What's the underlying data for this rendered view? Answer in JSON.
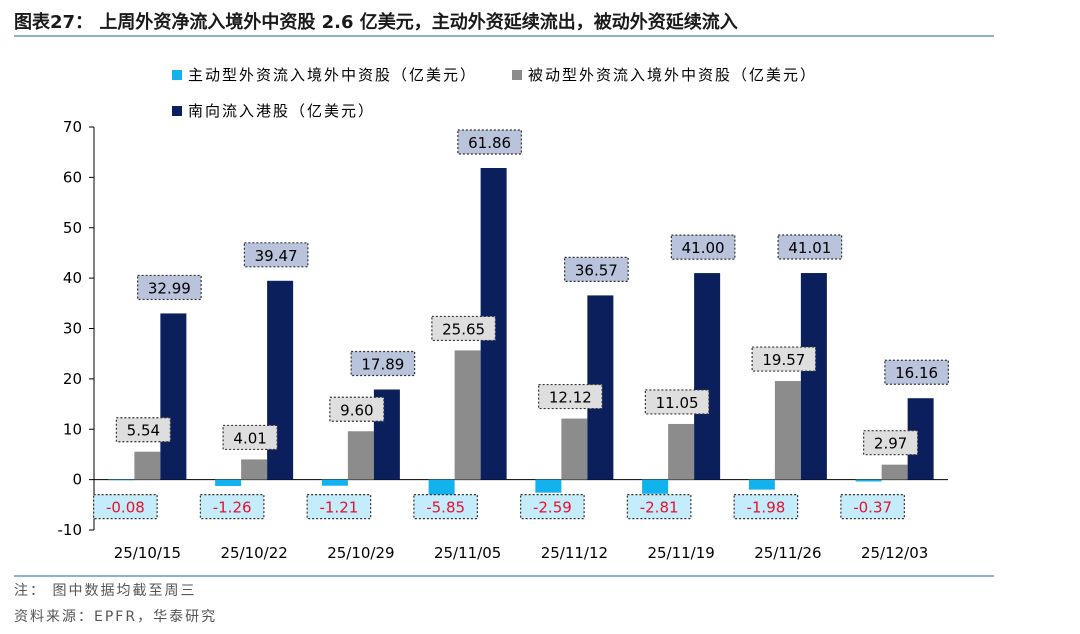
{
  "header": {
    "title": "图表27：  上周外资净流入境外中资股 2.6 亿美元，主动外资延续流出，被动外资延续流入"
  },
  "footer": {
    "note": "注：  图中数据均截至周三",
    "source": "资料来源：EPFR，华泰研究"
  },
  "chart_data": {
    "type": "bar",
    "categories": [
      "25/10/15",
      "25/10/22",
      "25/10/29",
      "25/11/05",
      "25/11/12",
      "25/11/19",
      "25/11/26",
      "25/12/03"
    ],
    "series": [
      {
        "name": "主动型外资流入境外中资股（亿美元）",
        "color": "#12b2ee",
        "label_bg": "#c5ecfb",
        "label_color": "#e8112d",
        "values": [
          -0.08,
          -1.26,
          -1.21,
          -5.85,
          -2.59,
          -2.81,
          -1.98,
          -0.37
        ],
        "labels": [
          "-0.08",
          "-1.26",
          "-1.21",
          "-5.85",
          "-2.59",
          "-2.81",
          "-1.98",
          "-0.37"
        ]
      },
      {
        "name": "被动型外资流入境外中资股（亿美元）",
        "color": "#8c8c8c",
        "label_bg": "#dedede",
        "label_color": "#000000",
        "values": [
          5.54,
          4.01,
          9.6,
          25.65,
          12.12,
          11.05,
          19.57,
          2.97
        ],
        "labels": [
          "5.54",
          "4.01",
          "9.60",
          "25.65",
          "12.12",
          "11.05",
          "19.57",
          "2.97"
        ]
      },
      {
        "name": "南向流入港股（亿美元）",
        "color": "#0b1f5c",
        "label_bg": "#b9c3dc",
        "label_color": "#000000",
        "values": [
          32.99,
          39.47,
          17.89,
          61.86,
          36.57,
          41.0,
          41.01,
          16.16
        ],
        "labels": [
          "32.99",
          "39.47",
          "17.89",
          "61.86",
          "36.57",
          "41.00",
          "41.01",
          "16.16"
        ]
      }
    ],
    "ylim": [
      -10,
      70
    ],
    "yticks": [
      -10,
      0,
      10,
      20,
      30,
      40,
      50,
      60,
      70
    ],
    "legend_position": "top",
    "grid": false
  }
}
